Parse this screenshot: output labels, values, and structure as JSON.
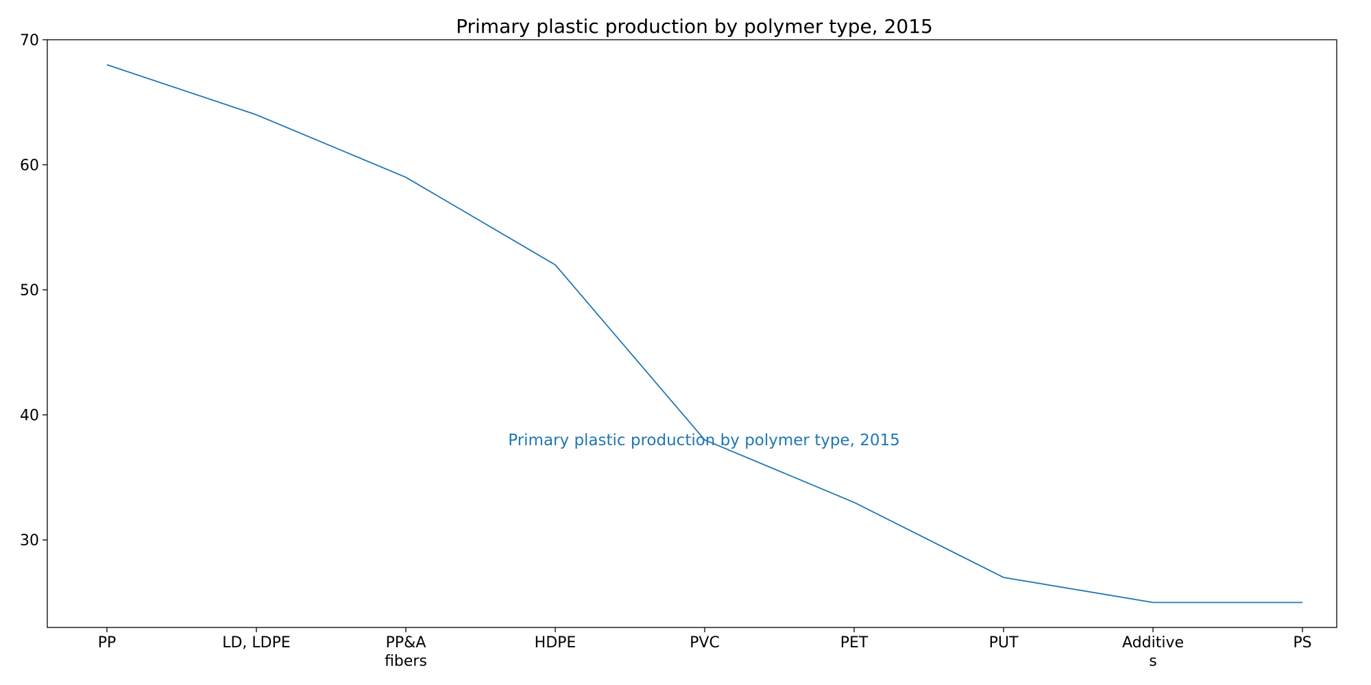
{
  "chart_data": {
    "type": "line",
    "title": "Primary plastic production by polymer type, 2015",
    "xlabel": "",
    "ylabel": "",
    "categories": [
      "PP",
      "LD, LDPE",
      "PP&A fibers",
      "HDPE",
      "PVC",
      "PET",
      "PUT",
      "Additives",
      "PS"
    ],
    "category_tick_lines": [
      [
        "PP"
      ],
      [
        "LD, LDPE"
      ],
      [
        "PP&A",
        "fibers"
      ],
      [
        "HDPE"
      ],
      [
        "PVC"
      ],
      [
        "PET"
      ],
      [
        "PUT"
      ],
      [
        "Additive",
        "s"
      ],
      [
        "PS"
      ]
    ],
    "series": [
      {
        "values": [
          68,
          64,
          59,
          52,
          38,
          33,
          27,
          25,
          25
        ]
      }
    ],
    "ylim": [
      23,
      70
    ],
    "yticks": [
      30,
      40,
      50,
      60,
      70
    ],
    "grid": false,
    "legend": "none",
    "annotation": {
      "text": "Primary plastic production by polymer type, 2015",
      "x_category": "PVC",
      "y": 38
    },
    "colors": {
      "line": "#1f77b4",
      "axes": "#000000",
      "background": "#ffffff"
    }
  }
}
